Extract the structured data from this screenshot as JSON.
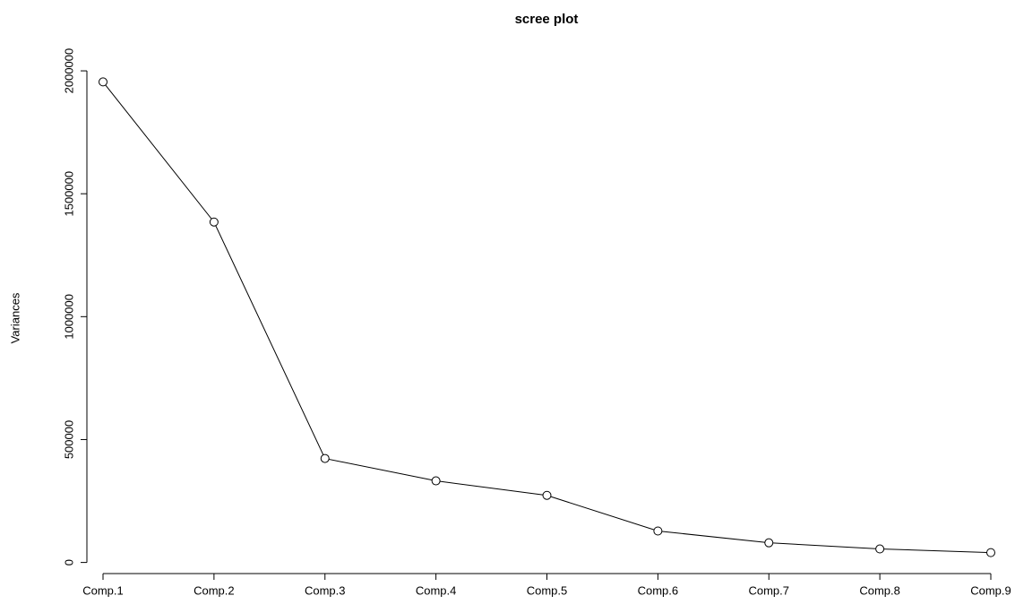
{
  "chart_data": {
    "type": "line",
    "title": "scree plot",
    "y_label": "Variances",
    "categories": [
      "Comp.1",
      "Comp.2",
      "Comp.3",
      "Comp.4",
      "Comp.5",
      "Comp.6",
      "Comp.7",
      "Comp.8",
      "Comp.9"
    ],
    "values": [
      1955000,
      1385000,
      423000,
      332000,
      273000,
      128000,
      80000,
      55000,
      40000
    ],
    "color": "#000000",
    "ylim": [
      -78000,
      2033000
    ],
    "yticks": [
      0,
      500000,
      1000000,
      1500000,
      2000000
    ],
    "grid": false
  }
}
